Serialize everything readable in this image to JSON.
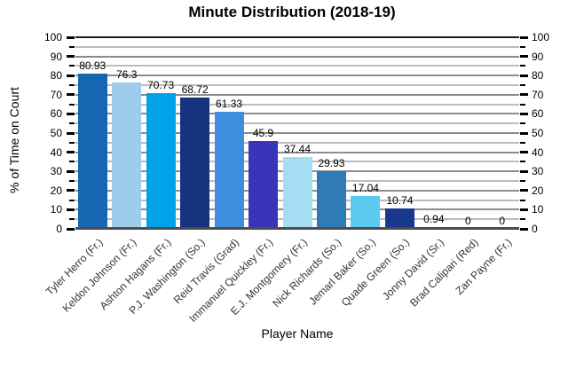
{
  "chart_data": {
    "type": "bar",
    "title": "Minute Distribution (2018-19)",
    "xlabel": "Player Name",
    "ylabel": "% of Time on Court",
    "ylim": [
      0,
      100
    ],
    "ytick_step": 10,
    "yminor_step": 5,
    "yticks": [
      0,
      10,
      20,
      30,
      40,
      50,
      60,
      70,
      80,
      90,
      100
    ],
    "grid": "on",
    "legend": "none",
    "axes_mirrored": true,
    "categories": [
      "Tyler Herro (Fr.)",
      "Keldon Johnson (Fr.)",
      "Ashton Hagans (Fr.)",
      "P.J. Washington (So.)",
      "Reid Travis (Grad)",
      "Immanuel Quickley (Fr.)",
      "E.J. Montgomery (Fr.)",
      "Nick Richards (So.)",
      "Jemarl Baker (So.)",
      "Quade Green (So.)",
      "Jonny David (Sr.)",
      "Brad Calipari (Red)",
      "Zan Payne (Fr.)"
    ],
    "values": [
      80.93,
      76.3,
      70.73,
      68.72,
      61.33,
      45.9,
      37.44,
      29.93,
      17.04,
      10.74,
      0.94,
      0,
      0
    ],
    "value_labels": [
      "80.93",
      "76.3",
      "70.73",
      "68.72",
      "61.33",
      "45.9",
      "37.44",
      "29.93",
      "17.04",
      "10.74",
      "0.94",
      "0",
      "0"
    ],
    "bar_colors": [
      "#1667B1",
      "#9DCCEC",
      "#00A3E8",
      "#16337F",
      "#3E8EDD",
      "#3A34B8",
      "#A5DEF2",
      "#2E7BB5",
      "#5BC9F0",
      "#17388C",
      "#2B6CB0",
      "#2B6CB0",
      "#2B6CB0"
    ]
  },
  "style_colors": {
    "background": "#ffffff",
    "gridline_major": "#8c8c8c",
    "gridline_minor": "#bcbcbc",
    "top_frame_line": "#1a1a1a",
    "baseline": "#4d4d4d",
    "tick": "#000000",
    "category_label": "#333333",
    "text": "#000000"
  }
}
